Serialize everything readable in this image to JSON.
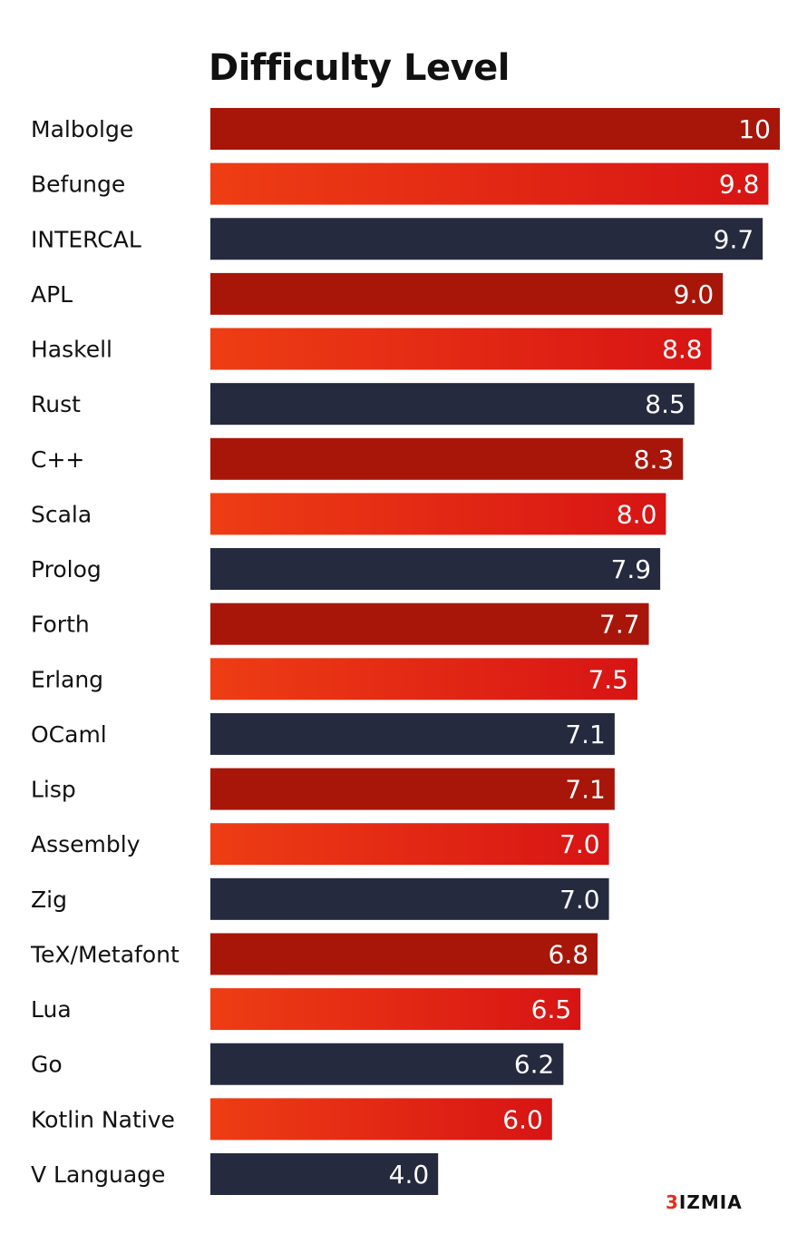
{
  "colors": {
    "dark_red": "#a8160a",
    "red_gradient_start": "#ee3d14",
    "red_gradient_end": "#d71414",
    "navy": "#262a3f"
  },
  "brand": {
    "mark": "3",
    "text": "IZMIA"
  },
  "chart_data": {
    "type": "bar",
    "orientation": "horizontal",
    "title": "Difficulty Level",
    "categories": [
      "Malbolge",
      "Befunge",
      "INTERCAL",
      "APL",
      "Haskell",
      "Rust",
      "C++",
      "Scala",
      "Prolog",
      "Forth",
      "Erlang",
      "OCaml",
      "Lisp",
      "Assembly",
      "Zig",
      "TeX/Metafont",
      "Lua",
      "Go",
      "Kotlin Native",
      "V Language"
    ],
    "values": [
      10,
      9.8,
      9.7,
      9.0,
      8.8,
      8.5,
      8.3,
      8.0,
      7.9,
      7.7,
      7.5,
      7.1,
      7.1,
      7.0,
      7.0,
      6.8,
      6.5,
      6.2,
      6.0,
      4.0
    ],
    "value_labels": [
      "10",
      "9.8",
      "9.7",
      "9.0",
      "8.8",
      "8.5",
      "8.3",
      "8.0",
      "7.9",
      "7.7",
      "7.5",
      "7.1",
      "7.1",
      "7.0",
      "7.0",
      "6.8",
      "6.5",
      "6.2",
      "6.0",
      "4.0"
    ],
    "bar_colors": [
      "dark_red",
      "red_gradient",
      "navy",
      "dark_red",
      "red_gradient",
      "navy",
      "dark_red",
      "red_gradient",
      "navy",
      "dark_red",
      "red_gradient",
      "navy",
      "dark_red",
      "red_gradient",
      "navy",
      "dark_red",
      "red_gradient",
      "navy",
      "red_gradient",
      "navy"
    ],
    "xlim": [
      0,
      10
    ],
    "grid": false,
    "legend": "none"
  }
}
